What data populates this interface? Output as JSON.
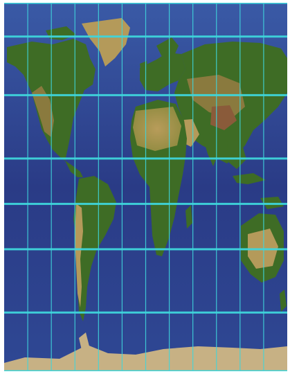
{
  "map": {
    "kind": "world-physical-relief",
    "projection": "Mercator",
    "graticule": {
      "color": "#3fd6dc",
      "meridians_lon": [
        -150,
        -120,
        -90,
        -60,
        -30,
        0,
        30,
        60,
        90,
        120,
        150
      ],
      "parallels_lat": [
        75,
        60,
        30,
        0,
        -30,
        -60
      ]
    },
    "colors": {
      "ocean_deep": "#2a3b86",
      "ocean_mid": "#34539c",
      "shelf": "#5c86c2",
      "lowland": "#2f5a1e",
      "forest": "#3e6c25",
      "upland": "#8a7a3e",
      "desert": "#b49a5a",
      "mountain": "#8a5b3a",
      "ice": "#c7b184"
    }
  }
}
